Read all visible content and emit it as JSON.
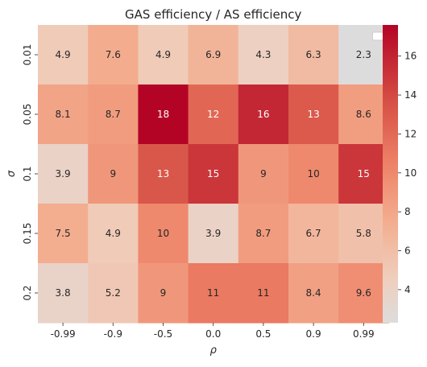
{
  "chart_data": {
    "type": "heatmap",
    "title": "GAS efficiency / AS efficiency",
    "xlabel": "ρ",
    "ylabel": "σ",
    "x_categories": [
      "-0.99",
      "-0.9",
      "-0.5",
      "0.0",
      "0.5",
      "0.9",
      "0.99"
    ],
    "y_categories": [
      "0.01",
      "0.05",
      "0.1",
      "0.15",
      "0.2"
    ],
    "values": [
      [
        4.9,
        7.6,
        4.9,
        6.9,
        4.3,
        6.3,
        2.3
      ],
      [
        8.1,
        8.7,
        17.6,
        12.2,
        15.8,
        13.0,
        8.6
      ],
      [
        3.9,
        9.0,
        13.2,
        15.0,
        9.0,
        10.0,
        15.0
      ],
      [
        7.5,
        4.9,
        10.0,
        3.9,
        8.7,
        6.7,
        5.8
      ],
      [
        3.8,
        5.2,
        9.0,
        11.0,
        11.0,
        8.4,
        9.6
      ]
    ],
    "labels": [
      [
        "4.9",
        "7.6",
        "4.9",
        "6.9",
        "4.3",
        "6.3",
        "2.3"
      ],
      [
        "8.1",
        "8.7",
        "18",
        "12",
        "16",
        "13",
        "8.6"
      ],
      [
        "3.9",
        "9",
        "13",
        "15",
        "9",
        "10",
        "15"
      ],
      [
        "7.5",
        "4.9",
        "10",
        "3.9",
        "8.7",
        "6.7",
        "5.8"
      ],
      [
        "3.8",
        "5.2",
        "9",
        "11",
        "11",
        "8.4",
        "9.6"
      ]
    ],
    "colorbar": {
      "min": 2.3,
      "max": 17.6,
      "ticks": [
        4,
        6,
        8,
        10,
        12,
        14,
        16
      ]
    },
    "colormap": "coolwarm-upper",
    "legend": {
      "placement": "top-right",
      "entries": []
    }
  }
}
